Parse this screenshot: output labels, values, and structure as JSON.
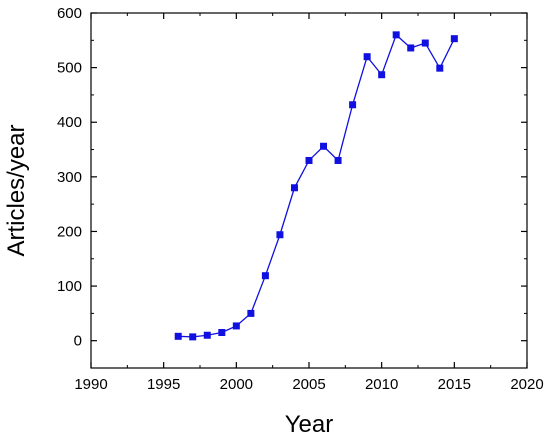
{
  "chart_data": {
    "type": "line",
    "title": "",
    "xlabel": "Year",
    "ylabel": "Articles/year",
    "xlim": [
      1990,
      2020
    ],
    "ylim": [
      -50,
      600
    ],
    "x_ticks": [
      1990,
      1995,
      2000,
      2005,
      2010,
      2015,
      2020
    ],
    "y_ticks": [
      0,
      100,
      200,
      300,
      400,
      500,
      600
    ],
    "grid": false,
    "legend": "none",
    "marker": "square",
    "color": "#1010e0",
    "series": [
      {
        "x": [
          1996,
          1997,
          1998,
          1999,
          2000,
          2001,
          2002,
          2003,
          2004,
          2005,
          2006,
          2007,
          2008,
          2009,
          2010,
          2011,
          2012,
          2013,
          2014,
          2015
        ],
        "y": [
          8,
          7,
          10,
          15,
          27,
          50,
          119,
          194,
          280,
          330,
          356,
          330,
          432,
          520,
          487,
          560,
          536,
          545,
          499,
          553
        ]
      }
    ]
  }
}
